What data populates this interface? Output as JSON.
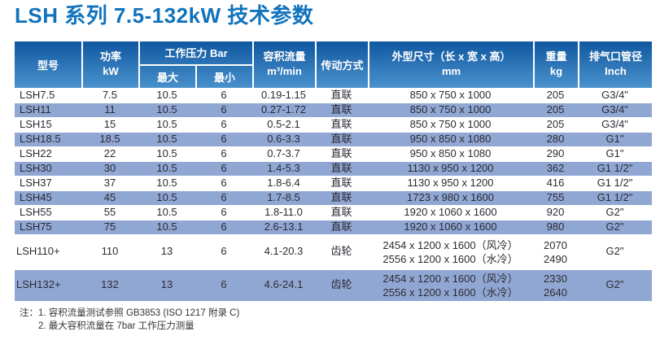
{
  "title": "LSH 系列 7.5-132kW 技术参数",
  "colors": {
    "title_blue": "#1173BC",
    "header_top": "#0F57A0",
    "header_bottom": "#4B93CD",
    "row_highlight": "#91A7D3",
    "text_dark": "#2B2B33"
  },
  "table": {
    "columns": {
      "model": "型号",
      "power": [
        "功率",
        "kW"
      ],
      "pressure_group": "工作压力 Bar",
      "pressure_max": "最大",
      "pressure_min": "最小",
      "flow": [
        "容积流量",
        "m³/min"
      ],
      "drive": "传动方式",
      "dims": [
        "外型尺寸（长 x 宽 x 高）",
        "mm"
      ],
      "weight": [
        "重量",
        "kg"
      ],
      "outlet": [
        "排气口管径",
        "Inch"
      ]
    },
    "rows": [
      {
        "model": "LSH7.5",
        "power": "7.5",
        "pmax": "10.5",
        "pmin": "6",
        "flow": "0.19-1.15",
        "drive": "直联",
        "dims": "850 x 750 x 1000",
        "weight": "205",
        "outlet": "G3/4\""
      },
      {
        "model": "LSH11",
        "power": "11",
        "pmax": "10.5",
        "pmin": "6",
        "flow": "0.27-1.72",
        "drive": "直联",
        "dims": "850 x 750 x 1000",
        "weight": "205",
        "outlet": "G3/4\""
      },
      {
        "model": "LSH15",
        "power": "15",
        "pmax": "10.5",
        "pmin": "6",
        "flow": "0.5-2.1",
        "drive": "直联",
        "dims": "850 x 750 x 1000",
        "weight": "205",
        "outlet": "G3/4\""
      },
      {
        "model": "LSH18.5",
        "power": "18.5",
        "pmax": "10.5",
        "pmin": "6",
        "flow": "0.6-3.3",
        "drive": "直联",
        "dims": "950 x 850 x 1080",
        "weight": "280",
        "outlet": "G1\""
      },
      {
        "model": "LSH22",
        "power": "22",
        "pmax": "10.5",
        "pmin": "6",
        "flow": "0.7-3.7",
        "drive": "直联",
        "dims": "950 x 850 x 1080",
        "weight": "290",
        "outlet": "G1\""
      },
      {
        "model": "LSH30",
        "power": "30",
        "pmax": "10.5",
        "pmin": "6",
        "flow": "1.4-5.3",
        "drive": "直联",
        "dims": "1130 x 950 x 1200",
        "weight": "362",
        "outlet": "G1 1/2\""
      },
      {
        "model": "LSH37",
        "power": "37",
        "pmax": "10.5",
        "pmin": "6",
        "flow": "1.8-6.4",
        "drive": "直联",
        "dims": "1130 x 950 x 1200",
        "weight": "416",
        "outlet": "G1 1/2\""
      },
      {
        "model": "LSH45",
        "power": "45",
        "pmax": "10.5",
        "pmin": "6",
        "flow": "1.7-8.5",
        "drive": "直联",
        "dims": "1723 x 980 x 1600",
        "weight": "755",
        "outlet": "G1 1/2\""
      },
      {
        "model": "LSH55",
        "power": "55",
        "pmax": "10.5",
        "pmin": "6",
        "flow": "1.8-11.0",
        "drive": "直联",
        "dims": "1920 x 1060 x 1600",
        "weight": "920",
        "outlet": "G2\""
      },
      {
        "model": "LSH75",
        "power": "75",
        "pmax": "10.5",
        "pmin": "6",
        "flow": "2.6-13.1",
        "drive": "直联",
        "dims": "1920 x 1060 x 1600",
        "weight": "980",
        "outlet": "G2\""
      },
      {
        "model": "LSH110+",
        "power": "110",
        "pmax": "13",
        "pmin": "6",
        "flow": "4.1-20.3",
        "drive": "齿轮",
        "dims": [
          "2454 x 1200 x 1600（风冷）",
          "2556 x 1200 x 1600（水冷）"
        ],
        "weight": [
          "2070",
          "2490"
        ],
        "outlet": "G2\""
      },
      {
        "model": "LSH132+",
        "power": "132",
        "pmax": "13",
        "pmin": "6",
        "flow": "4.6-24.1",
        "drive": "齿轮",
        "dims": [
          "2454 x 1200 x 1600（风冷）",
          "2556 x 1200 x 1600（水冷）"
        ],
        "weight": [
          "2330",
          "2640"
        ],
        "outlet": "G2\""
      }
    ]
  },
  "notes": {
    "label": "注：",
    "items": [
      "1. 容积流量测试参照 GB3853 (ISO 1217 附录 C)",
      "2. 最大容积流量在 7bar 工作压力测量"
    ]
  }
}
